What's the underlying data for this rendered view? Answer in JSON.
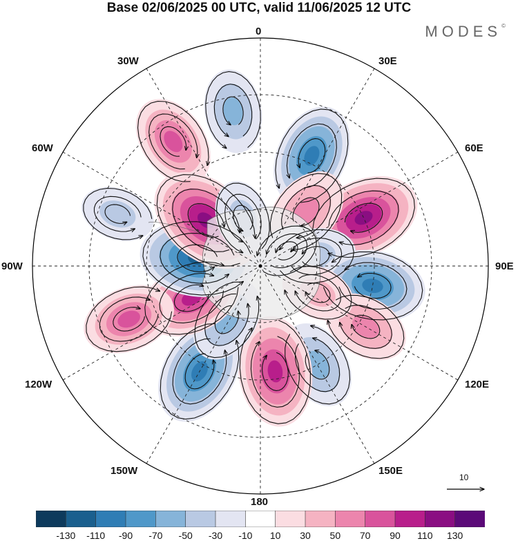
{
  "title": "Base 02/06/2025 00 UTC, valid 11/06/2025 12 UTC",
  "logo": "MODES",
  "logo_mark": "©",
  "longitude_labels": {
    "top": "0",
    "bottom": "180",
    "left": "90W",
    "right": "90E",
    "upper_left_1": "30W",
    "upper_left_2": "60W",
    "upper_right_1": "30E",
    "upper_right_2": "60E",
    "lower_left_1": "120W",
    "lower_left_2": "150W",
    "lower_right_1": "120E",
    "lower_right_2": "150E"
  },
  "reference_vector": "10",
  "colorbar": {
    "colors": [
      "#0d3a5c",
      "#1a5f8e",
      "#2f7db5",
      "#4f98c9",
      "#86b4d9",
      "#b9c9e3",
      "#e3e5f2",
      "#ffffff",
      "#fbdde2",
      "#f5b3c2",
      "#ec85ad",
      "#d9539c",
      "#b81e8b",
      "#8a0e82",
      "#5b0a78"
    ],
    "labels": [
      "-130",
      "-110",
      "-90",
      "-70",
      "-50",
      "-30",
      "-10",
      "10",
      "30",
      "50",
      "70",
      "90",
      "110",
      "130"
    ]
  },
  "anomaly_centres": [
    {
      "lon": -35,
      "colat": 60,
      "value": 80
    },
    {
      "lon": -10,
      "colat": 62,
      "value": -60
    },
    {
      "lon": 25,
      "colat": 48,
      "value": -100
    },
    {
      "lon": 65,
      "colat": 45,
      "value": 120
    },
    {
      "lon": 40,
      "colat": 28,
      "value": 75
    },
    {
      "lon": 80,
      "colat": 22,
      "value": -55
    },
    {
      "lon": 100,
      "colat": 45,
      "value": -105
    },
    {
      "lon": 120,
      "colat": 48,
      "value": 65
    },
    {
      "lon": 115,
      "colat": 25,
      "value": 40
    },
    {
      "lon": 150,
      "colat": 45,
      "value": -70
    },
    {
      "lon": 172,
      "colat": 42,
      "value": 115
    },
    {
      "lon": -150,
      "colat": 48,
      "value": -110
    },
    {
      "lon": -148,
      "colat": 25,
      "value": -65
    },
    {
      "lon": -115,
      "colat": 30,
      "value": 100
    },
    {
      "lon": -112,
      "colat": 56,
      "value": 80
    },
    {
      "lon": -83,
      "colat": 25,
      "value": -125
    },
    {
      "lon": -50,
      "colat": 28,
      "value": 130
    },
    {
      "lon": -20,
      "colat": 20,
      "value": -45
    },
    {
      "lon": -70,
      "colat": 60,
      "value": -40
    },
    {
      "lon": 60,
      "colat": 12,
      "value": -25
    }
  ]
}
